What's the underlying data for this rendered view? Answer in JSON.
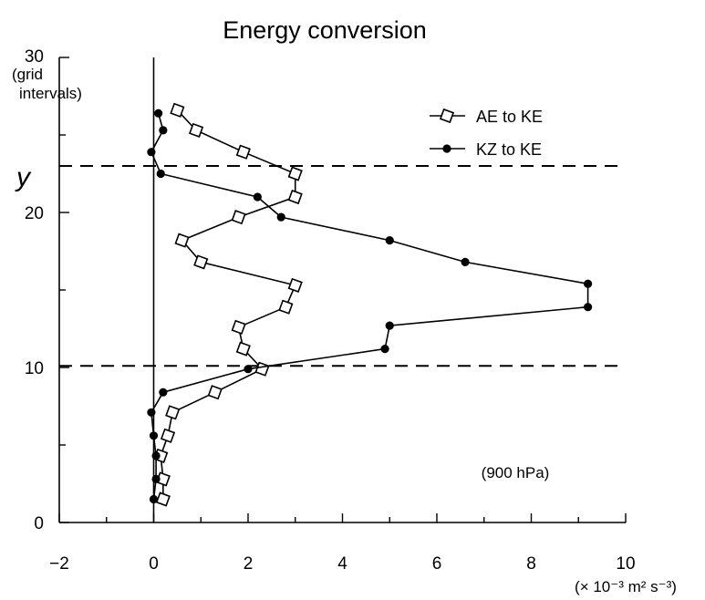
{
  "chart_data": {
    "type": "line",
    "title": "Energy conversion",
    "xlabel": "",
    "ylabel": "y",
    "x_unit_label": "(× 10⁻³ m² s⁻³)",
    "y_top_label": "30",
    "y_unit_label_line1": "(grid",
    "y_unit_label_line2": "intervals)",
    "xlim": [
      -2,
      10
    ],
    "ylim": [
      0,
      30
    ],
    "xticks": [
      "−2",
      "0",
      "2",
      "4",
      "6",
      "8",
      "10"
    ],
    "yticks": [
      "0",
      "10",
      "20"
    ],
    "reference_lines_y": [
      10.1,
      23.0
    ],
    "annotation": "(900 hPa)",
    "legend_position": "top-right",
    "series": [
      {
        "name": "AE to KE",
        "marker": "open-diamond",
        "points": [
          [
            0.2,
            1.5
          ],
          [
            0.2,
            2.8
          ],
          [
            0.15,
            4.3
          ],
          [
            0.3,
            5.6
          ],
          [
            0.4,
            7.1
          ],
          [
            1.3,
            8.4
          ],
          [
            2.3,
            9.9
          ],
          [
            1.9,
            11.2
          ],
          [
            1.8,
            12.6
          ],
          [
            2.8,
            13.9
          ],
          [
            3.0,
            15.3
          ],
          [
            1.0,
            16.8
          ],
          [
            0.6,
            18.2
          ],
          [
            1.8,
            19.7
          ],
          [
            3.0,
            21.0
          ],
          [
            3.0,
            22.5
          ],
          [
            1.9,
            23.9
          ],
          [
            0.9,
            25.3
          ],
          [
            0.5,
            26.6
          ]
        ]
      },
      {
        "name": "KZ to KE",
        "marker": "filled-circle",
        "points": [
          [
            0.0,
            1.5
          ],
          [
            0.05,
            2.8
          ],
          [
            0.05,
            4.3
          ],
          [
            0.0,
            5.6
          ],
          [
            -0.05,
            7.1
          ],
          [
            0.2,
            8.4
          ],
          [
            2.0,
            9.9
          ],
          [
            4.9,
            11.2
          ],
          [
            5.0,
            12.7
          ],
          [
            9.2,
            13.9
          ],
          [
            9.2,
            15.4
          ],
          [
            6.6,
            16.8
          ],
          [
            5.0,
            18.2
          ],
          [
            2.7,
            19.7
          ],
          [
            2.2,
            21.0
          ],
          [
            0.15,
            22.5
          ],
          [
            -0.05,
            23.9
          ],
          [
            0.2,
            25.3
          ],
          [
            0.1,
            26.4
          ]
        ]
      }
    ]
  }
}
